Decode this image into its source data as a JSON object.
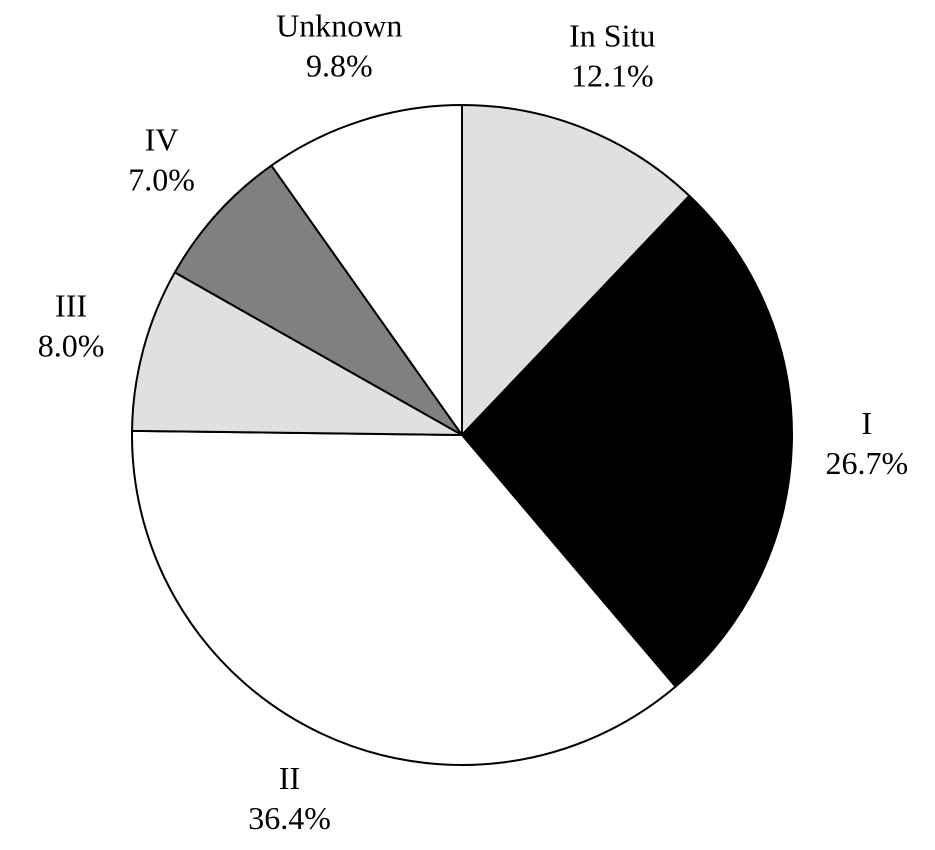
{
  "chart_data": {
    "type": "pie",
    "categories": [
      "In Situ",
      "I",
      "II",
      "III",
      "IV",
      "Unknown"
    ],
    "values": [
      12.1,
      26.7,
      36.4,
      8.0,
      7.0,
      9.8
    ],
    "value_labels": [
      "12.1%",
      "26.7%",
      "36.4%",
      "8.0%",
      "7.0%",
      "9.8%"
    ],
    "colors": [
      "#e0e0e0",
      "#000000",
      "#ffffff",
      "#e0e0e0",
      "#808080",
      "#ffffff"
    ]
  }
}
